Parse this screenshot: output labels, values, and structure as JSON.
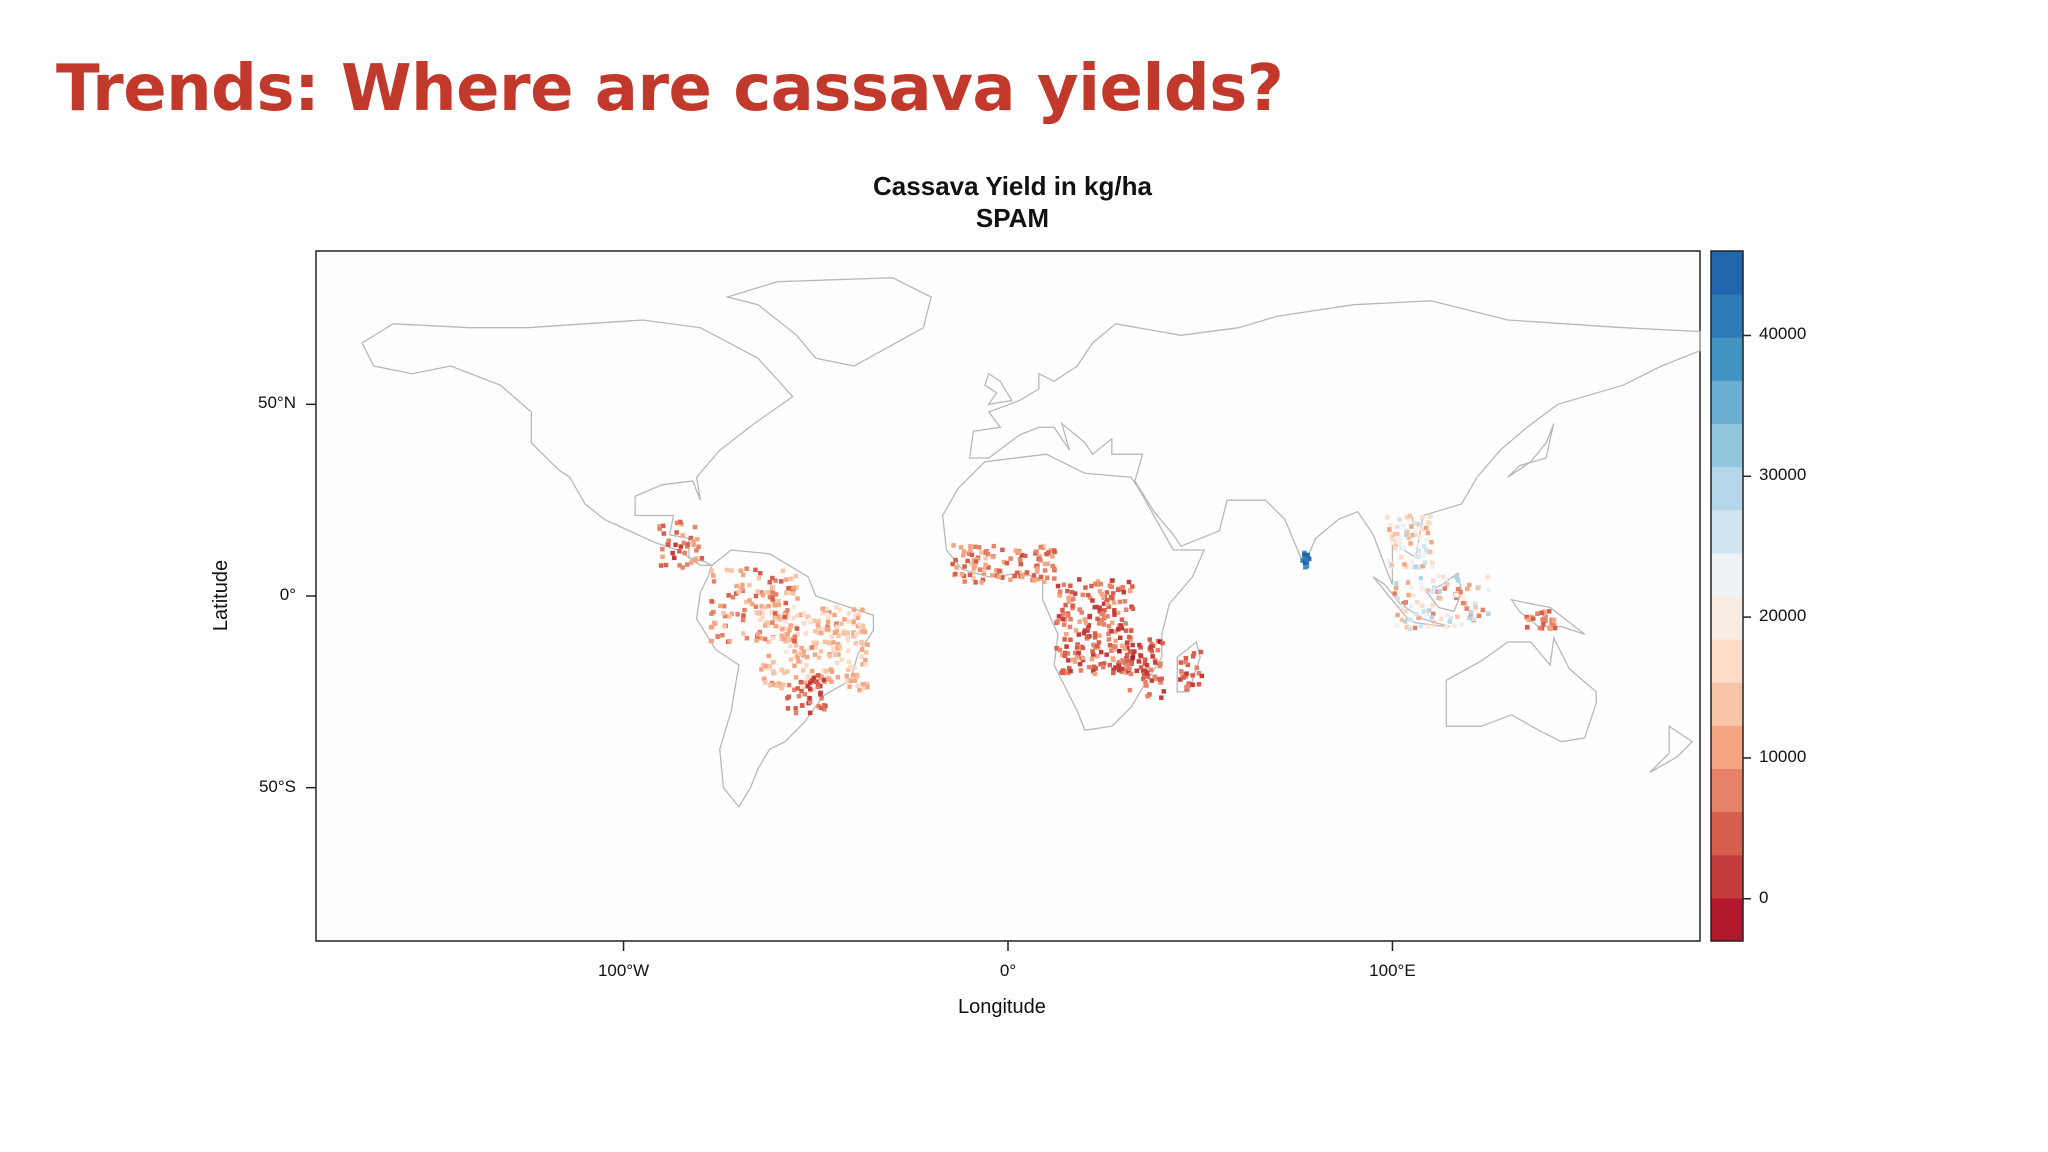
{
  "slide": {
    "title": "Trends: Where are cassava yields?"
  },
  "map": {
    "title_line1": "Cassava Yield in kg/ha",
    "title_line2": "SPAM",
    "xlabel": "Longitude",
    "ylabel": "Latitude",
    "x_ticks": [
      {
        "lon": -100,
        "label": "100°W"
      },
      {
        "lon": 0,
        "label": "0°"
      },
      {
        "lon": 100,
        "label": "100°E"
      }
    ],
    "y_ticks": [
      {
        "lat": 50,
        "label": "50°N"
      },
      {
        "lat": 0,
        "label": "0°"
      },
      {
        "lat": -50,
        "label": "50°S"
      }
    ],
    "xlim": [
      -180,
      180
    ],
    "ylim": [
      -90,
      90
    ],
    "colorbar": {
      "range": [
        -3000,
        46000
      ],
      "ticks": [
        0,
        10000,
        20000,
        30000,
        40000
      ],
      "tick_labels": [
        "0",
        "10000",
        "20000",
        "30000",
        "40000"
      ],
      "colors": [
        "#b2182b",
        "#c43c3c",
        "#d6604d",
        "#e58268",
        "#f4a582",
        "#f7c4a8",
        "#fddbc7",
        "#f7ebe2",
        "#eef2f5",
        "#d1e5f0",
        "#b4d6e8",
        "#92c5de",
        "#6aaed3",
        "#4393c3",
        "#2f79b5",
        "#2166ac"
      ]
    }
  }
}
